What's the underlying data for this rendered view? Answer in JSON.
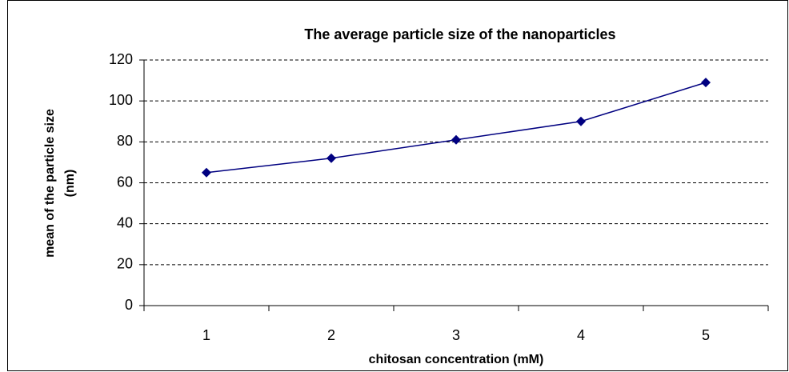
{
  "chart_data": {
    "type": "line",
    "title": "The average particle size of the nanoparticles",
    "xlabel": "chitosan concentration (mM)",
    "ylabel": [
      "mean of the particle size",
      "(nm)"
    ],
    "categories": [
      "1",
      "2",
      "3",
      "4",
      "5"
    ],
    "series": [
      {
        "name": "mean of the particle size",
        "color": "#000080",
        "values": [
          65,
          72,
          81,
          90,
          109
        ]
      }
    ],
    "ylim": [
      0,
      120
    ],
    "yticks": [
      0,
      20,
      40,
      60,
      80,
      100,
      120
    ],
    "grid": true
  }
}
